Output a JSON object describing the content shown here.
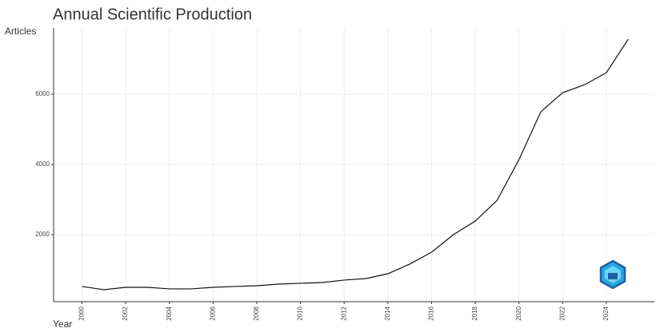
{
  "chart_data": {
    "type": "line",
    "title": "Annual Scientific Production",
    "x_label": "Year",
    "y_label": "Articles",
    "x": [
      2000,
      2001,
      2002,
      2003,
      2004,
      2005,
      2006,
      2007,
      2008,
      2009,
      2010,
      2011,
      2012,
      2013,
      2014,
      2015,
      2016,
      2017,
      2018,
      2019,
      2020,
      2021,
      2022,
      2023,
      2024,
      2025
    ],
    "values": [
      523,
      432,
      500,
      500,
      455,
      455,
      500,
      523,
      545,
      590,
      614,
      636,
      705,
      750,
      886,
      1160,
      1500,
      2000,
      2386,
      2977,
      4136,
      5500,
      6045,
      6270,
      6614,
      7568
    ],
    "color": "#111111",
    "xlim": [
      1998.7,
      2026.2
    ],
    "xticks": [
      2000,
      2002,
      2004,
      2006,
      2008,
      2010,
      2012,
      2014,
      2016,
      2018,
      2020,
      2022,
      2024
    ],
    "ylim": [
      90,
      7890
    ],
    "yticks": [
      2000,
      4000,
      6000
    ],
    "grid": true
  }
}
